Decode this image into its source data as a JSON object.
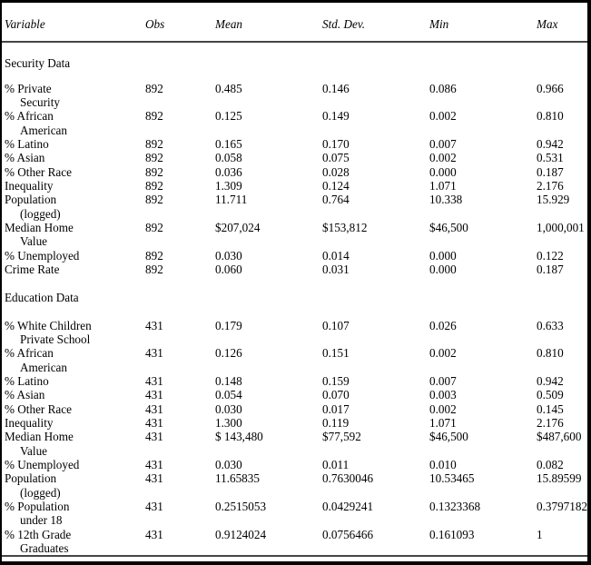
{
  "table": {
    "columns": [
      "Variable",
      "Obs",
      "Mean",
      "Std. Dev.",
      "Min",
      "Max"
    ],
    "sections": [
      {
        "title": "Security Data",
        "rows": [
          {
            "variable": [
              "% Private",
              "Security"
            ],
            "obs": "892",
            "mean": "0.485",
            "std_dev": "0.146",
            "min": "0.086",
            "max": "0.966"
          },
          {
            "variable": [
              "% African",
              "American"
            ],
            "obs": "892",
            "mean": "0.125",
            "std_dev": "0.149",
            "min": "0.002",
            "max": "0.810"
          },
          {
            "variable": [
              "% Latino"
            ],
            "obs": "892",
            "mean": "0.165",
            "std_dev": "0.170",
            "min": "0.007",
            "max": "0.942"
          },
          {
            "variable": [
              "% Asian"
            ],
            "obs": "892",
            "mean": "0.058",
            "std_dev": "0.075",
            "min": "0.002",
            "max": "0.531"
          },
          {
            "variable": [
              "% Other Race"
            ],
            "obs": "892",
            "mean": "0.036",
            "std_dev": "0.028",
            "min": "0.000",
            "max": "0.187"
          },
          {
            "variable": [
              "Inequality"
            ],
            "obs": "892",
            "mean": "1.309",
            "std_dev": "0.124",
            "min": "1.071",
            "max": "2.176"
          },
          {
            "variable": [
              "Population",
              "(logged)"
            ],
            "obs": "892",
            "mean": "11.711",
            "std_dev": "0.764",
            "min": "10.338",
            "max": "15.929"
          },
          {
            "variable": [
              "Median Home",
              "Value"
            ],
            "obs": "892",
            "mean": "$207,024",
            "std_dev": "$153,812",
            "min": "$46,500",
            "max": "1,000,001"
          },
          {
            "variable": [
              "% Unemployed"
            ],
            "obs": "892",
            "mean": "0.030",
            "std_dev": "0.014",
            "min": "0.000",
            "max": "0.122"
          },
          {
            "variable": [
              "Crime Rate"
            ],
            "obs": "892",
            "mean": "0.060",
            "std_dev": "0.031",
            "min": "0.000",
            "max": "0.187"
          }
        ]
      },
      {
        "title": "Education Data",
        "rows": [
          {
            "variable": [
              "% White Children",
              "Private School"
            ],
            "obs": "431",
            "mean": "0.179",
            "std_dev": "0.107",
            "min": "0.026",
            "max": "0.633"
          },
          {
            "variable": [
              "% African",
              "American"
            ],
            "obs": "431",
            "mean": "0.126",
            "std_dev": "0.151",
            "min": "0.002",
            "max": "0.810"
          },
          {
            "variable": [
              "% Latino"
            ],
            "obs": "431",
            "mean": "0.148",
            "std_dev": "0.159",
            "min": "0.007",
            "max": "0.942"
          },
          {
            "variable": [
              "% Asian"
            ],
            "obs": "431",
            "mean": "0.054",
            "std_dev": "0.070",
            "min": "0.003",
            "max": "0.509"
          },
          {
            "variable": [
              "% Other Race"
            ],
            "obs": "431",
            "mean": "0.030",
            "std_dev": "0.017",
            "min": "0.002",
            "max": "0.145"
          },
          {
            "variable": [
              "Inequality"
            ],
            "obs": "431",
            "mean": "1.300",
            "std_dev": "0.119",
            "min": "1.071",
            "max": "2.176"
          },
          {
            "variable": [
              "Median Home",
              "Value"
            ],
            "obs": "431",
            "mean": "$ 143,480",
            "std_dev": "$77,592",
            "min": "$46,500",
            "max": "$487,600"
          },
          {
            "variable": [
              "% Unemployed"
            ],
            "obs": "431",
            "mean": "0.030",
            "std_dev": "0.011",
            "min": "0.010",
            "max": "0.082"
          },
          {
            "variable": [
              "Population",
              "(logged)"
            ],
            "obs": "431",
            "mean": "11.65835",
            "std_dev": "0.7630046",
            "min": "10.53465",
            "max": "15.89599"
          },
          {
            "variable": [
              "% Population",
              "under 18"
            ],
            "obs": "431",
            "mean": "0.2515053",
            "std_dev": "0.0429241",
            "min": "0.1323368",
            "max": "0.3797182"
          },
          {
            "variable": [
              "% 12th Grade",
              "Graduates"
            ],
            "obs": "431",
            "mean": "0.9124024",
            "std_dev": "0.0756466",
            "min": "0.161093",
            "max": "1"
          }
        ]
      }
    ]
  }
}
